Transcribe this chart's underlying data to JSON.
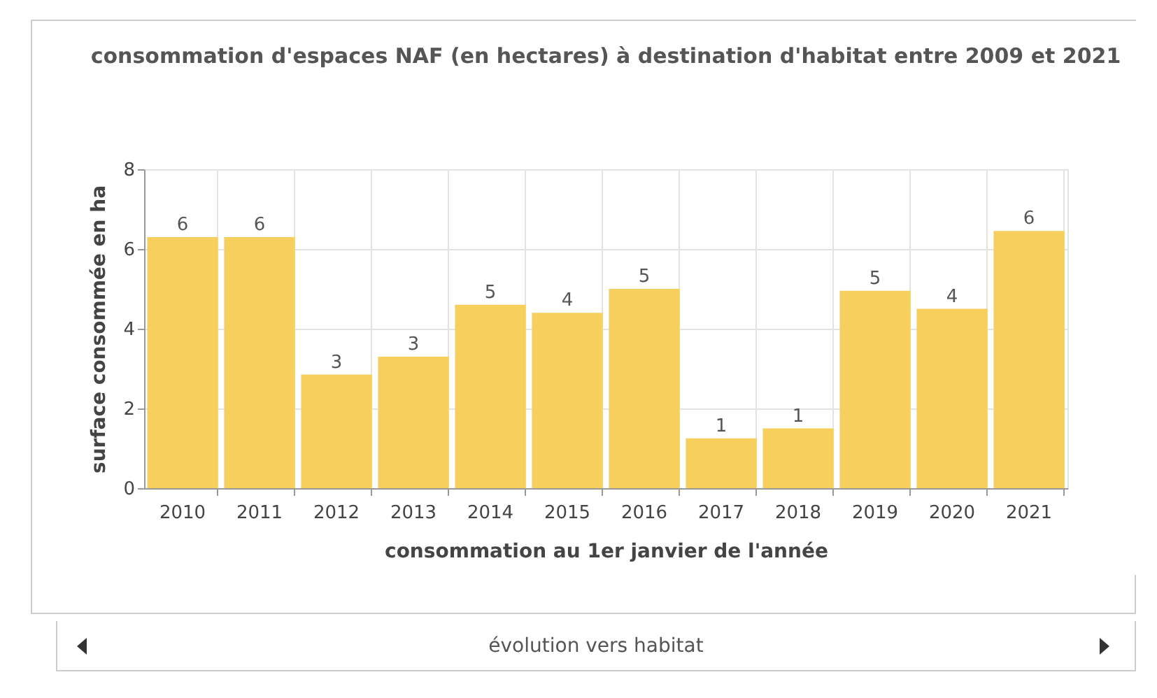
{
  "chart_data": {
    "type": "bar",
    "title": "consommation d'espaces NAF (en hectares) à destination d'habitat entre 2009 et 2021",
    "xlabel": "consommation au 1er janvier de l'année",
    "ylabel": "surface consommée en ha",
    "categories": [
      "2010",
      "2011",
      "2012",
      "2013",
      "2014",
      "2015",
      "2016",
      "2017",
      "2018",
      "2019",
      "2020",
      "2021"
    ],
    "values": [
      6.3,
      6.3,
      2.85,
      3.3,
      4.6,
      4.4,
      5.0,
      1.25,
      1.5,
      4.95,
      4.5,
      6.45
    ],
    "value_labels": [
      "6",
      "6",
      "3",
      "3",
      "5",
      "4",
      "5",
      "1",
      "1",
      "5",
      "4",
      "6"
    ],
    "color": "#f6cf5c",
    "ylim": [
      0,
      8
    ],
    "yticks": [
      0,
      2,
      4,
      6,
      8
    ],
    "grid": true,
    "annotations": [
      "évolution vers habitat"
    ]
  }
}
